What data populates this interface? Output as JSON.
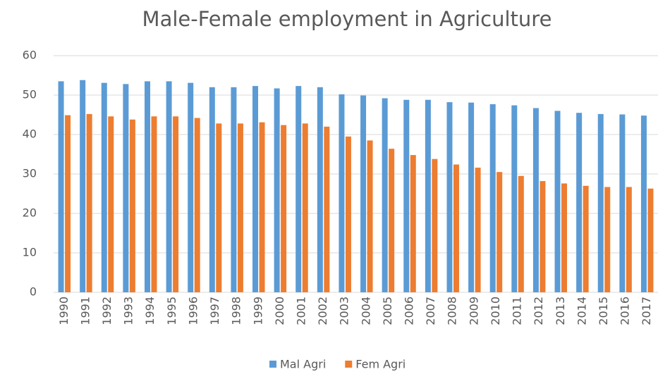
{
  "chart_data": {
    "type": "bar",
    "title": "Male-Female employment in Agriculture",
    "categories": [
      "1990",
      "1991",
      "1992",
      "1993",
      "1994",
      "1995",
      "1996",
      "1997",
      "1998",
      "1999",
      "2000",
      "2001",
      "2002",
      "2003",
      "2004",
      "2005",
      "2006",
      "2007",
      "2008",
      "2009",
      "2010",
      "2011",
      "2012",
      "2013",
      "2014",
      "2015",
      "2016",
      "2017"
    ],
    "series": [
      {
        "name": "Mal Agri",
        "color": "#5b9bd5",
        "values": [
          53.5,
          53.8,
          53.1,
          52.8,
          53.5,
          53.5,
          53.1,
          52.0,
          52.0,
          52.3,
          51.7,
          52.3,
          52.0,
          50.2,
          49.9,
          49.2,
          48.8,
          48.8,
          48.2,
          48.1,
          47.7,
          47.4,
          46.7,
          46.0,
          45.5,
          45.2,
          45.1,
          44.8
        ]
      },
      {
        "name": "Fem Agri",
        "color": "#ed7d31",
        "values": [
          44.9,
          45.2,
          44.6,
          43.8,
          44.6,
          44.6,
          44.2,
          42.8,
          42.8,
          43.1,
          42.4,
          42.8,
          42.0,
          39.5,
          38.5,
          36.4,
          34.8,
          33.8,
          32.4,
          31.6,
          30.5,
          29.5,
          28.2,
          27.6,
          27.0,
          26.7,
          26.7,
          26.3
        ]
      }
    ],
    "ylim": [
      0,
      60
    ],
    "yticks": [
      0,
      10,
      20,
      30,
      40,
      50,
      60
    ],
    "grid": true,
    "legend": "bottom"
  }
}
